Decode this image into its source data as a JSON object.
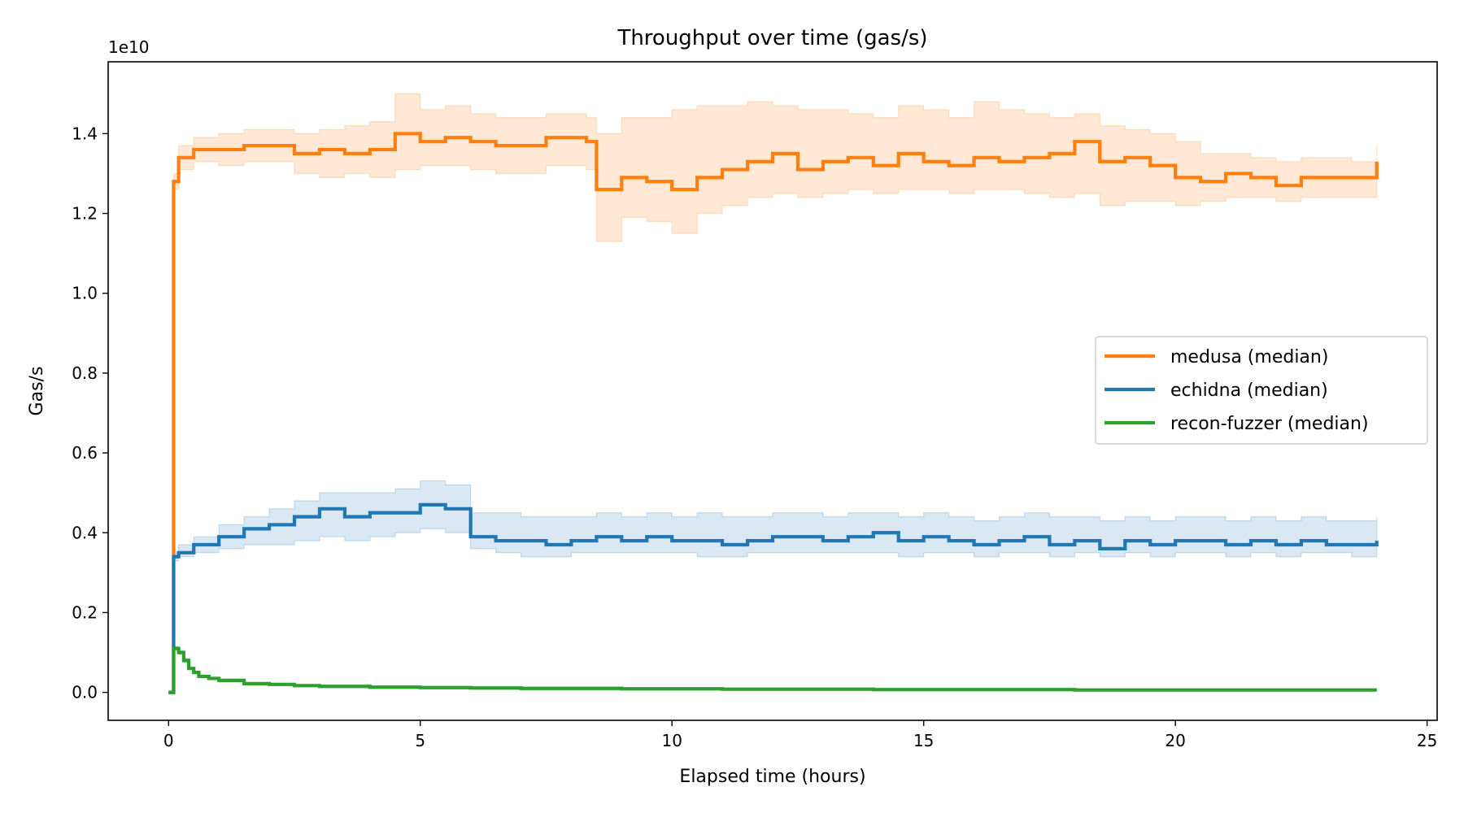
{
  "chart_data": {
    "type": "line",
    "title": "Throughput over time (gas/s)",
    "xlabel": "Elapsed time (hours)",
    "ylabel": "Gas/s",
    "y_offset_label": "1e10",
    "xlim": [
      -1.2,
      25.2
    ],
    "ylim": [
      -0.07,
      1.58
    ],
    "xticks": [
      0,
      5,
      10,
      15,
      20,
      25
    ],
    "xtick_labels": [
      "0",
      "5",
      "10",
      "15",
      "20",
      "25"
    ],
    "yticks": [
      0.0,
      0.2,
      0.4,
      0.6,
      0.8,
      1.0,
      1.2,
      1.4
    ],
    "ytick_labels": [
      "0.0",
      "0.2",
      "0.4",
      "0.6",
      "0.8",
      "1.0",
      "1.2",
      "1.4"
    ],
    "grid": false,
    "legend_position": "center-right",
    "step": true,
    "series": [
      {
        "name": "medusa (median)",
        "color": "#ff7f0e",
        "band_color": "#ff7f0e",
        "x": [
          0,
          0.1,
          0.2,
          0.5,
          1,
          1.5,
          2,
          2.5,
          3,
          3.5,
          4,
          4.5,
          5,
          5.5,
          6,
          6.5,
          7,
          7.5,
          8,
          8.3,
          8.5,
          9,
          9.5,
          10,
          10.5,
          11,
          11.5,
          12,
          12.5,
          13,
          13.5,
          14,
          14.5,
          15,
          15.5,
          16,
          16.5,
          17,
          17.5,
          18,
          18.5,
          19,
          19.5,
          20,
          20.5,
          21,
          21.5,
          22,
          22.5,
          23,
          23.5,
          24
        ],
        "y": [
          0.0,
          1.28,
          1.34,
          1.36,
          1.36,
          1.37,
          1.37,
          1.35,
          1.36,
          1.35,
          1.36,
          1.4,
          1.38,
          1.39,
          1.38,
          1.37,
          1.37,
          1.39,
          1.39,
          1.38,
          1.26,
          1.29,
          1.28,
          1.26,
          1.29,
          1.31,
          1.33,
          1.35,
          1.31,
          1.33,
          1.34,
          1.32,
          1.35,
          1.33,
          1.32,
          1.34,
          1.33,
          1.34,
          1.35,
          1.38,
          1.33,
          1.34,
          1.32,
          1.29,
          1.28,
          1.3,
          1.29,
          1.27,
          1.29,
          1.29,
          1.29,
          1.33
        ],
        "band_low": [
          0.0,
          1.26,
          1.31,
          1.33,
          1.32,
          1.33,
          1.33,
          1.3,
          1.29,
          1.3,
          1.29,
          1.31,
          1.32,
          1.32,
          1.31,
          1.3,
          1.3,
          1.32,
          1.32,
          1.31,
          1.13,
          1.19,
          1.18,
          1.15,
          1.2,
          1.22,
          1.24,
          1.25,
          1.24,
          1.25,
          1.26,
          1.25,
          1.26,
          1.26,
          1.25,
          1.26,
          1.26,
          1.25,
          1.24,
          1.25,
          1.22,
          1.23,
          1.23,
          1.22,
          1.23,
          1.24,
          1.24,
          1.23,
          1.24,
          1.24,
          1.24,
          1.26
        ],
        "band_high": [
          0.0,
          1.3,
          1.37,
          1.39,
          1.4,
          1.41,
          1.41,
          1.4,
          1.41,
          1.42,
          1.43,
          1.5,
          1.46,
          1.47,
          1.45,
          1.44,
          1.44,
          1.45,
          1.45,
          1.44,
          1.4,
          1.44,
          1.44,
          1.46,
          1.47,
          1.47,
          1.48,
          1.47,
          1.46,
          1.46,
          1.45,
          1.44,
          1.47,
          1.46,
          1.44,
          1.48,
          1.46,
          1.45,
          1.44,
          1.45,
          1.42,
          1.41,
          1.4,
          1.38,
          1.35,
          1.35,
          1.34,
          1.33,
          1.34,
          1.34,
          1.33,
          1.37
        ]
      },
      {
        "name": "echidna (median)",
        "color": "#1f77b4",
        "band_color": "#1f77b4",
        "x": [
          0,
          0.1,
          0.2,
          0.5,
          1,
          1.5,
          2,
          2.5,
          3,
          3.5,
          4,
          4.5,
          5,
          5.5,
          6,
          6.5,
          7,
          7.5,
          8,
          8.5,
          9,
          9.5,
          10,
          10.5,
          11,
          11.5,
          12,
          12.5,
          13,
          13.5,
          14,
          14.5,
          15,
          15.5,
          16,
          16.5,
          17,
          17.5,
          18,
          18.5,
          19,
          19.5,
          20,
          20.5,
          21,
          21.5,
          22,
          22.5,
          23,
          23.5,
          24
        ],
        "y": [
          0.0,
          0.34,
          0.35,
          0.37,
          0.39,
          0.41,
          0.42,
          0.44,
          0.46,
          0.44,
          0.45,
          0.45,
          0.47,
          0.46,
          0.39,
          0.38,
          0.38,
          0.37,
          0.38,
          0.39,
          0.38,
          0.39,
          0.38,
          0.38,
          0.37,
          0.38,
          0.39,
          0.39,
          0.38,
          0.39,
          0.4,
          0.38,
          0.39,
          0.38,
          0.37,
          0.38,
          0.39,
          0.37,
          0.38,
          0.36,
          0.38,
          0.37,
          0.38,
          0.38,
          0.37,
          0.38,
          0.37,
          0.38,
          0.37,
          0.37,
          0.38
        ],
        "band_low": [
          0.0,
          0.33,
          0.34,
          0.35,
          0.36,
          0.37,
          0.37,
          0.38,
          0.39,
          0.38,
          0.39,
          0.4,
          0.41,
          0.4,
          0.36,
          0.35,
          0.34,
          0.34,
          0.35,
          0.35,
          0.35,
          0.35,
          0.35,
          0.34,
          0.34,
          0.35,
          0.35,
          0.35,
          0.35,
          0.35,
          0.35,
          0.34,
          0.35,
          0.35,
          0.34,
          0.35,
          0.35,
          0.34,
          0.35,
          0.34,
          0.35,
          0.34,
          0.35,
          0.35,
          0.34,
          0.35,
          0.34,
          0.35,
          0.35,
          0.34,
          0.35
        ],
        "band_high": [
          0.0,
          0.35,
          0.37,
          0.39,
          0.42,
          0.44,
          0.46,
          0.48,
          0.5,
          0.5,
          0.5,
          0.51,
          0.53,
          0.52,
          0.45,
          0.45,
          0.44,
          0.44,
          0.44,
          0.45,
          0.44,
          0.45,
          0.44,
          0.45,
          0.44,
          0.44,
          0.45,
          0.45,
          0.44,
          0.45,
          0.45,
          0.44,
          0.45,
          0.44,
          0.43,
          0.44,
          0.45,
          0.44,
          0.44,
          0.43,
          0.44,
          0.43,
          0.44,
          0.44,
          0.43,
          0.44,
          0.43,
          0.44,
          0.43,
          0.43,
          0.44
        ]
      },
      {
        "name": "recon-fuzzer (median)",
        "color": "#2ca02c",
        "band_color": "#2ca02c",
        "x": [
          0,
          0.1,
          0.2,
          0.3,
          0.4,
          0.5,
          0.6,
          0.8,
          1,
          1.5,
          2,
          2.5,
          3,
          4,
          5,
          6,
          7,
          8,
          9,
          10,
          11,
          12,
          13,
          14,
          15,
          16,
          17,
          18,
          19,
          20,
          21,
          22,
          23,
          24
        ],
        "y": [
          0.0,
          0.11,
          0.1,
          0.08,
          0.06,
          0.05,
          0.04,
          0.035,
          0.03,
          0.022,
          0.02,
          0.017,
          0.015,
          0.013,
          0.012,
          0.011,
          0.01,
          0.01,
          0.009,
          0.009,
          0.008,
          0.008,
          0.008,
          0.007,
          0.007,
          0.007,
          0.007,
          0.006,
          0.006,
          0.006,
          0.006,
          0.006,
          0.006,
          0.006
        ],
        "band_low": [
          0.0,
          0.105,
          0.095,
          0.075,
          0.058,
          0.048,
          0.038,
          0.033,
          0.028,
          0.021,
          0.019,
          0.016,
          0.014,
          0.012,
          0.011,
          0.01,
          0.009,
          0.009,
          0.008,
          0.008,
          0.007,
          0.007,
          0.007,
          0.006,
          0.006,
          0.006,
          0.006,
          0.005,
          0.005,
          0.005,
          0.005,
          0.005,
          0.005,
          0.005
        ],
        "band_high": [
          0.0,
          0.115,
          0.105,
          0.085,
          0.062,
          0.052,
          0.042,
          0.037,
          0.032,
          0.023,
          0.021,
          0.018,
          0.016,
          0.014,
          0.013,
          0.012,
          0.011,
          0.011,
          0.01,
          0.01,
          0.009,
          0.009,
          0.009,
          0.008,
          0.008,
          0.008,
          0.008,
          0.007,
          0.007,
          0.007,
          0.007,
          0.007,
          0.007,
          0.007
        ]
      }
    ]
  }
}
